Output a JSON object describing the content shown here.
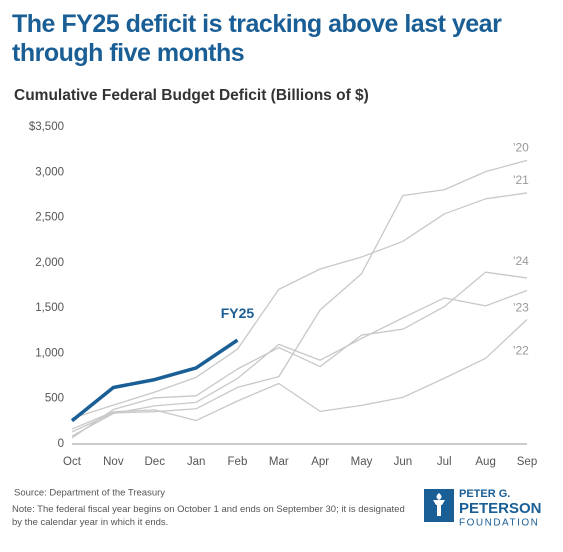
{
  "chart_data": {
    "type": "line",
    "title": "The FY25 deficit is tracking above last year through five months",
    "subtitle": "Cumulative Federal Budget Deficit (Billions of $)",
    "categories": [
      "Oct",
      "Nov",
      "Dec",
      "Jan",
      "Feb",
      "Mar",
      "Apr",
      "May",
      "Jun",
      "Jul",
      "Aug",
      "Sep"
    ],
    "series": [
      {
        "name": "FY25",
        "color": "#1a5e96",
        "values": [
          257,
          624,
          711,
          840,
          1147,
          null,
          null,
          null,
          null,
          null,
          null,
          null
        ]
      },
      {
        "name": "'20",
        "color": "#c8c8c8",
        "values": [
          134,
          343,
          357,
          389,
          625,
          744,
          1481,
          1880,
          2744,
          2807,
          3007,
          3132
        ]
      },
      {
        "name": "'21",
        "color": "#c8c8c8",
        "values": [
          284,
          429,
          573,
          736,
          1047,
          1707,
          1932,
          2064,
          2238,
          2540,
          2707,
          2772
        ]
      },
      {
        "name": "'22",
        "color": "#c8c8c8",
        "values": [
          165,
          356,
          377,
          259,
          475,
          668,
          360,
          426,
          515,
          726,
          946,
          1375
        ]
      },
      {
        "name": "'23",
        "color": "#c8c8c8",
        "values": [
          88,
          337,
          421,
          460,
          723,
          1100,
          925,
          1165,
          1393,
          1613,
          1525,
          1695
        ]
      },
      {
        "name": "'24",
        "color": "#c8c8c8",
        "values": [
          67,
          381,
          510,
          532,
          828,
          1065,
          855,
          1202,
          1268,
          1516,
          1897,
          1833
        ]
      }
    ],
    "ylim": [
      0,
      3500
    ],
    "yticks": [
      0,
      500,
      {
        "value": 1000,
        "label": "1,000"
      },
      {
        "value": 1500,
        "label": "1,500"
      },
      {
        "value": 2000,
        "label": "2,000"
      },
      {
        "value": 2500,
        "label": "2,500"
      },
      {
        "value": 3000,
        "label": "3,000"
      },
      {
        "value": 3500,
        "label": "$3,500"
      }
    ],
    "grid": false,
    "source": "Source: Department of the Treasury",
    "note": "Note: The federal fiscal year begins on October 1 and ends on September 30; it is designated by the calendar year in which it ends.",
    "logo": [
      "PETER G.",
      "PETERSON",
      "FOUNDATION"
    ]
  }
}
